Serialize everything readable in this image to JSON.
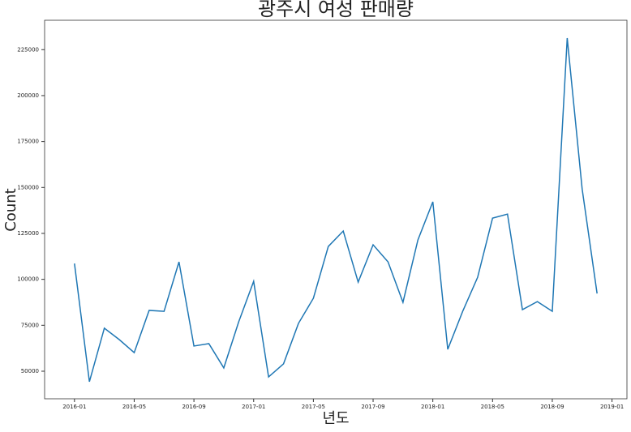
{
  "chart_data": {
    "type": "line",
    "title": "광주시 여성 판매량",
    "xlabel": "년도",
    "ylabel": "Count",
    "x": [
      "2016-01",
      "2016-02",
      "2016-03",
      "2016-04",
      "2016-05",
      "2016-06",
      "2016-07",
      "2016-08",
      "2016-09",
      "2016-10",
      "2016-11",
      "2016-12",
      "2017-01",
      "2017-02",
      "2017-03",
      "2017-04",
      "2017-05",
      "2017-06",
      "2017-07",
      "2017-08",
      "2017-09",
      "2017-10",
      "2017-11",
      "2017-12",
      "2018-01",
      "2018-02",
      "2018-03",
      "2018-04",
      "2018-05",
      "2018-06",
      "2018-07",
      "2018-08",
      "2018-09",
      "2018-10",
      "2018-11",
      "2018-12"
    ],
    "series": [
      {
        "name": "Count",
        "color": "#1f77b4",
        "values": [
          108600,
          44300,
          73400,
          67200,
          60100,
          83100,
          82600,
          109500,
          63700,
          65000,
          51800,
          76900,
          98900,
          46900,
          54000,
          76000,
          89700,
          117900,
          126300,
          98500,
          118800,
          109500,
          87500,
          121400,
          142200,
          61900,
          82600,
          101100,
          133300,
          135500,
          83500,
          87900,
          82600,
          231300,
          149200,
          92300
        ]
      }
    ],
    "xlim": [
      "2015-11",
      "2019-02"
    ],
    "xticks": [
      "2016-01",
      "2016-05",
      "2016-09",
      "2017-01",
      "2017-05",
      "2017-09",
      "2018-01",
      "2018-05",
      "2018-09",
      "2019-01"
    ],
    "ylim": [
      35000,
      241000
    ],
    "yticks": [
      50000,
      75000,
      100000,
      125000,
      150000,
      175000,
      200000,
      225000
    ]
  }
}
